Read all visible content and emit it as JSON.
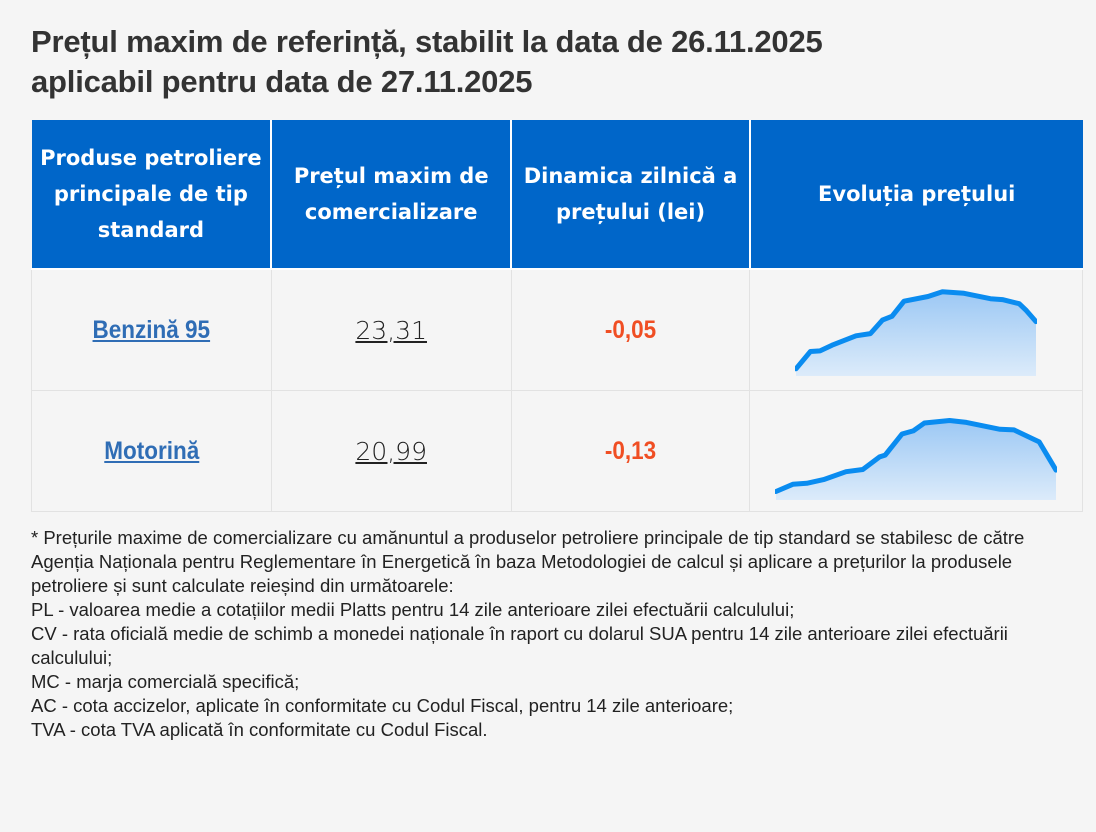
{
  "title_line1": "Prețul maxim de referință, stabilit la data de 26.11.2025",
  "title_line2": "aplicabil pentru data de 27.11.2025",
  "table": {
    "headers": [
      "Produse petroliere principale de tip standard",
      "Prețul maxim de comercializare",
      "Dinamica zilnică a prețului (lei)",
      "Evoluția prețului"
    ],
    "rows": [
      {
        "product": "Benzină 95",
        "price": "23,31",
        "delta": "-0,05",
        "trend": [
          [
            0,
            23
          ],
          [
            6,
            78
          ],
          [
            10,
            80
          ],
          [
            15,
            98
          ],
          [
            25,
            128
          ],
          [
            31,
            135
          ],
          [
            36,
            178
          ],
          [
            40,
            190
          ],
          [
            45,
            238
          ],
          [
            55,
            253
          ],
          [
            61,
            268
          ],
          [
            70,
            263
          ],
          [
            81,
            246
          ],
          [
            86,
            243
          ],
          [
            93,
            230
          ],
          [
            96,
            208
          ],
          [
            100,
            173
          ]
        ]
      },
      {
        "product": "Motorină",
        "price": "20,99",
        "delta": "-0,13",
        "trend": [
          [
            0,
            27
          ],
          [
            6,
            50
          ],
          [
            11,
            53
          ],
          [
            17,
            65
          ],
          [
            25,
            90
          ],
          [
            31,
            97
          ],
          [
            37,
            137
          ],
          [
            39,
            143
          ],
          [
            45,
            210
          ],
          [
            49,
            220
          ],
          [
            53,
            245
          ],
          [
            62,
            253
          ],
          [
            68,
            247
          ],
          [
            80,
            225
          ],
          [
            85,
            223
          ],
          [
            92,
            193
          ],
          [
            94,
            185
          ],
          [
            98,
            125
          ],
          [
            100,
            95
          ]
        ]
      }
    ]
  },
  "colors": {
    "header_bg": "#0066c9",
    "link": "#2f6db5",
    "negative": "#f04e23",
    "sparkline": "#0a8cf0"
  },
  "footnote": [
    "* Prețurile maxime de comercializare cu amănuntul a produselor petroliere principale de tip standard se stabilesc de către Agenția Naționala pentru Reglementare în Energetică în baza Metodologiei de calcul și aplicare a prețurilor la produsele petroliere și sunt calculate reieșind din următoarele:",
    "PL - valoarea medie a cotațiilor medii Platts pentru 14 zile anterioare zilei efectuării calculului;",
    "CV - rata oficială medie de schimb a monedei naționale în raport cu dolarul SUA pentru 14 zile anterioare zilei efectuării calculului;",
    "MC - marja comercială specifică;",
    "AC - cota accizelor, aplicate în conformitate cu Codul Fiscal, pentru 14 zile anterioare;",
    "TVA - cota TVA aplicată în conformitate cu Codul Fiscal."
  ]
}
